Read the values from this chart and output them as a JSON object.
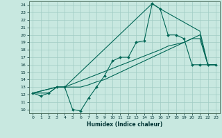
{
  "xlabel": "Humidex (Indice chaleur)",
  "xlim": [
    -0.5,
    23.5
  ],
  "ylim": [
    9.5,
    24.5
  ],
  "yticks": [
    10,
    11,
    12,
    13,
    14,
    15,
    16,
    17,
    18,
    19,
    20,
    21,
    22,
    23,
    24
  ],
  "xticks": [
    0,
    1,
    2,
    3,
    4,
    5,
    6,
    7,
    8,
    9,
    10,
    11,
    12,
    13,
    14,
    15,
    16,
    17,
    18,
    19,
    20,
    21,
    22,
    23
  ],
  "bg_color": "#c8e8e0",
  "grid_color": "#a0ccc4",
  "line_color": "#006655",
  "series0": {
    "x": [
      0,
      1,
      2,
      3,
      4,
      5,
      6,
      7,
      8,
      9,
      10,
      11,
      12,
      13,
      14,
      15,
      16,
      17,
      18,
      19,
      20,
      21,
      22,
      23
    ],
    "y": [
      12.2,
      11.8,
      12.2,
      13.0,
      13.0,
      10.0,
      9.8,
      11.5,
      13.0,
      14.5,
      16.5,
      17.0,
      17.0,
      19.0,
      19.2,
      24.2,
      23.5,
      20.0,
      20.0,
      19.5,
      16.0,
      16.0,
      16.0,
      16.0
    ]
  },
  "series1": {
    "x": [
      0,
      1,
      2,
      3,
      4,
      5,
      6,
      7,
      8,
      9,
      10,
      11,
      12,
      13,
      14,
      15,
      16,
      17,
      18,
      19,
      20,
      21,
      22,
      23
    ],
    "y": [
      12.2,
      12.2,
      12.2,
      13.0,
      13.0,
      13.0,
      13.0,
      13.3,
      13.7,
      14.0,
      14.5,
      15.0,
      15.5,
      16.0,
      16.5,
      17.0,
      17.5,
      18.0,
      18.5,
      19.0,
      19.5,
      20.0,
      16.0,
      16.0
    ]
  },
  "series2": {
    "x": [
      0,
      3,
      4,
      15,
      16,
      21,
      22,
      23
    ],
    "y": [
      12.2,
      13.0,
      13.0,
      24.2,
      23.5,
      20.5,
      16.0,
      16.0
    ]
  },
  "series3": {
    "x": [
      0,
      3,
      4,
      16,
      17,
      19,
      20,
      21,
      22,
      23
    ],
    "y": [
      12.2,
      13.0,
      13.0,
      18.0,
      18.5,
      19.0,
      19.5,
      19.5,
      16.0,
      16.0
    ]
  }
}
